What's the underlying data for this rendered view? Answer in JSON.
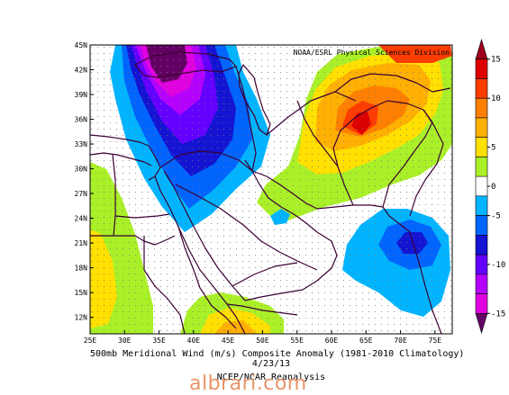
{
  "header": {
    "credit": "NOAA/ESRL Physical Sciences Division"
  },
  "footer": {
    "title": "500mb Meridional Wind (m/s) Composite Anomaly (1981-2010 Climatology)",
    "date": "4/23/13",
    "source": "NCEP/NCAR Reanalysis",
    "watermark": "albrari.com"
  },
  "map": {
    "lon_range": [
      25,
      77.5
    ],
    "lat_range": [
      10,
      45
    ],
    "lon_ticks": [
      "25E",
      "30E",
      "35E",
      "40E",
      "45E",
      "50E",
      "55E",
      "60E",
      "65E",
      "70E",
      "75E"
    ],
    "lat_ticks": [
      "12N",
      "15N",
      "18N",
      "21N",
      "24N",
      "27N",
      "30N",
      "33N",
      "36N",
      "39N",
      "42N",
      "45N"
    ]
  },
  "colorbar": {
    "ticks": [
      "15",
      "10",
      "5",
      "0",
      "-5",
      "-10",
      "-15"
    ],
    "colors": [
      "#a0001e",
      "#dd0000",
      "#ff3c00",
      "#ff8000",
      "#ffb000",
      "#ffe000",
      "#aaf028",
      "#ffffff",
      "#00b4ff",
      "#0064ff",
      "#1414d2",
      "#6400ff",
      "#b400ff",
      "#e000e0",
      "#640064"
    ]
  }
}
